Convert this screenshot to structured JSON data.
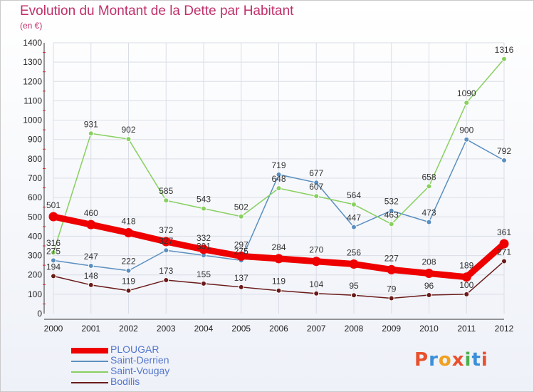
{
  "title": "Evolution du Montant de la Dette par Habitant",
  "unit": "(en €)",
  "logo": {
    "text": "Proxiti",
    "colors": [
      "#e8502e",
      "#3a8fd8",
      "#f0a020",
      "#e8502e",
      "#4bb04b",
      "#3a8fd8",
      "#e8502e"
    ]
  },
  "chart_data": {
    "type": "line",
    "title": "Evolution du Montant de la Dette par Habitant",
    "ylabel": "(en €)",
    "xlabel": "",
    "x": [
      "2000",
      "2001",
      "2002",
      "2003",
      "2004",
      "2005",
      "2006",
      "2007",
      "2008",
      "2009",
      "2010",
      "2011",
      "2012"
    ],
    "ylim": [
      0,
      1400
    ],
    "yticks": [
      0,
      100,
      200,
      300,
      400,
      500,
      600,
      700,
      800,
      900,
      1000,
      1100,
      1200,
      1300,
      1400
    ],
    "grid": true,
    "legend_position": "bottom-left",
    "series": [
      {
        "name": "PLOUGAR",
        "color": "#ee0000",
        "emphasis": true,
        "values": [
          501,
          460,
          418,
          372,
          332,
          297,
          284,
          270,
          256,
          227,
          208,
          189,
          361
        ]
      },
      {
        "name": "Saint-Derrien",
        "color": "#5b8fc0",
        "values": [
          275,
          247,
          222,
          327,
          301,
          275,
          719,
          677,
          447,
          532,
          473,
          900,
          792
        ]
      },
      {
        "name": "Saint-Vougay",
        "color": "#88d060",
        "values": [
          316,
          931,
          902,
          585,
          543,
          502,
          648,
          607,
          564,
          463,
          658,
          1090,
          1316
        ]
      },
      {
        "name": "Bodilis",
        "color": "#6a1a1a",
        "values": [
          194,
          148,
          119,
          173,
          155,
          137,
          119,
          104,
          95,
          79,
          96,
          100,
          271
        ]
      }
    ]
  }
}
